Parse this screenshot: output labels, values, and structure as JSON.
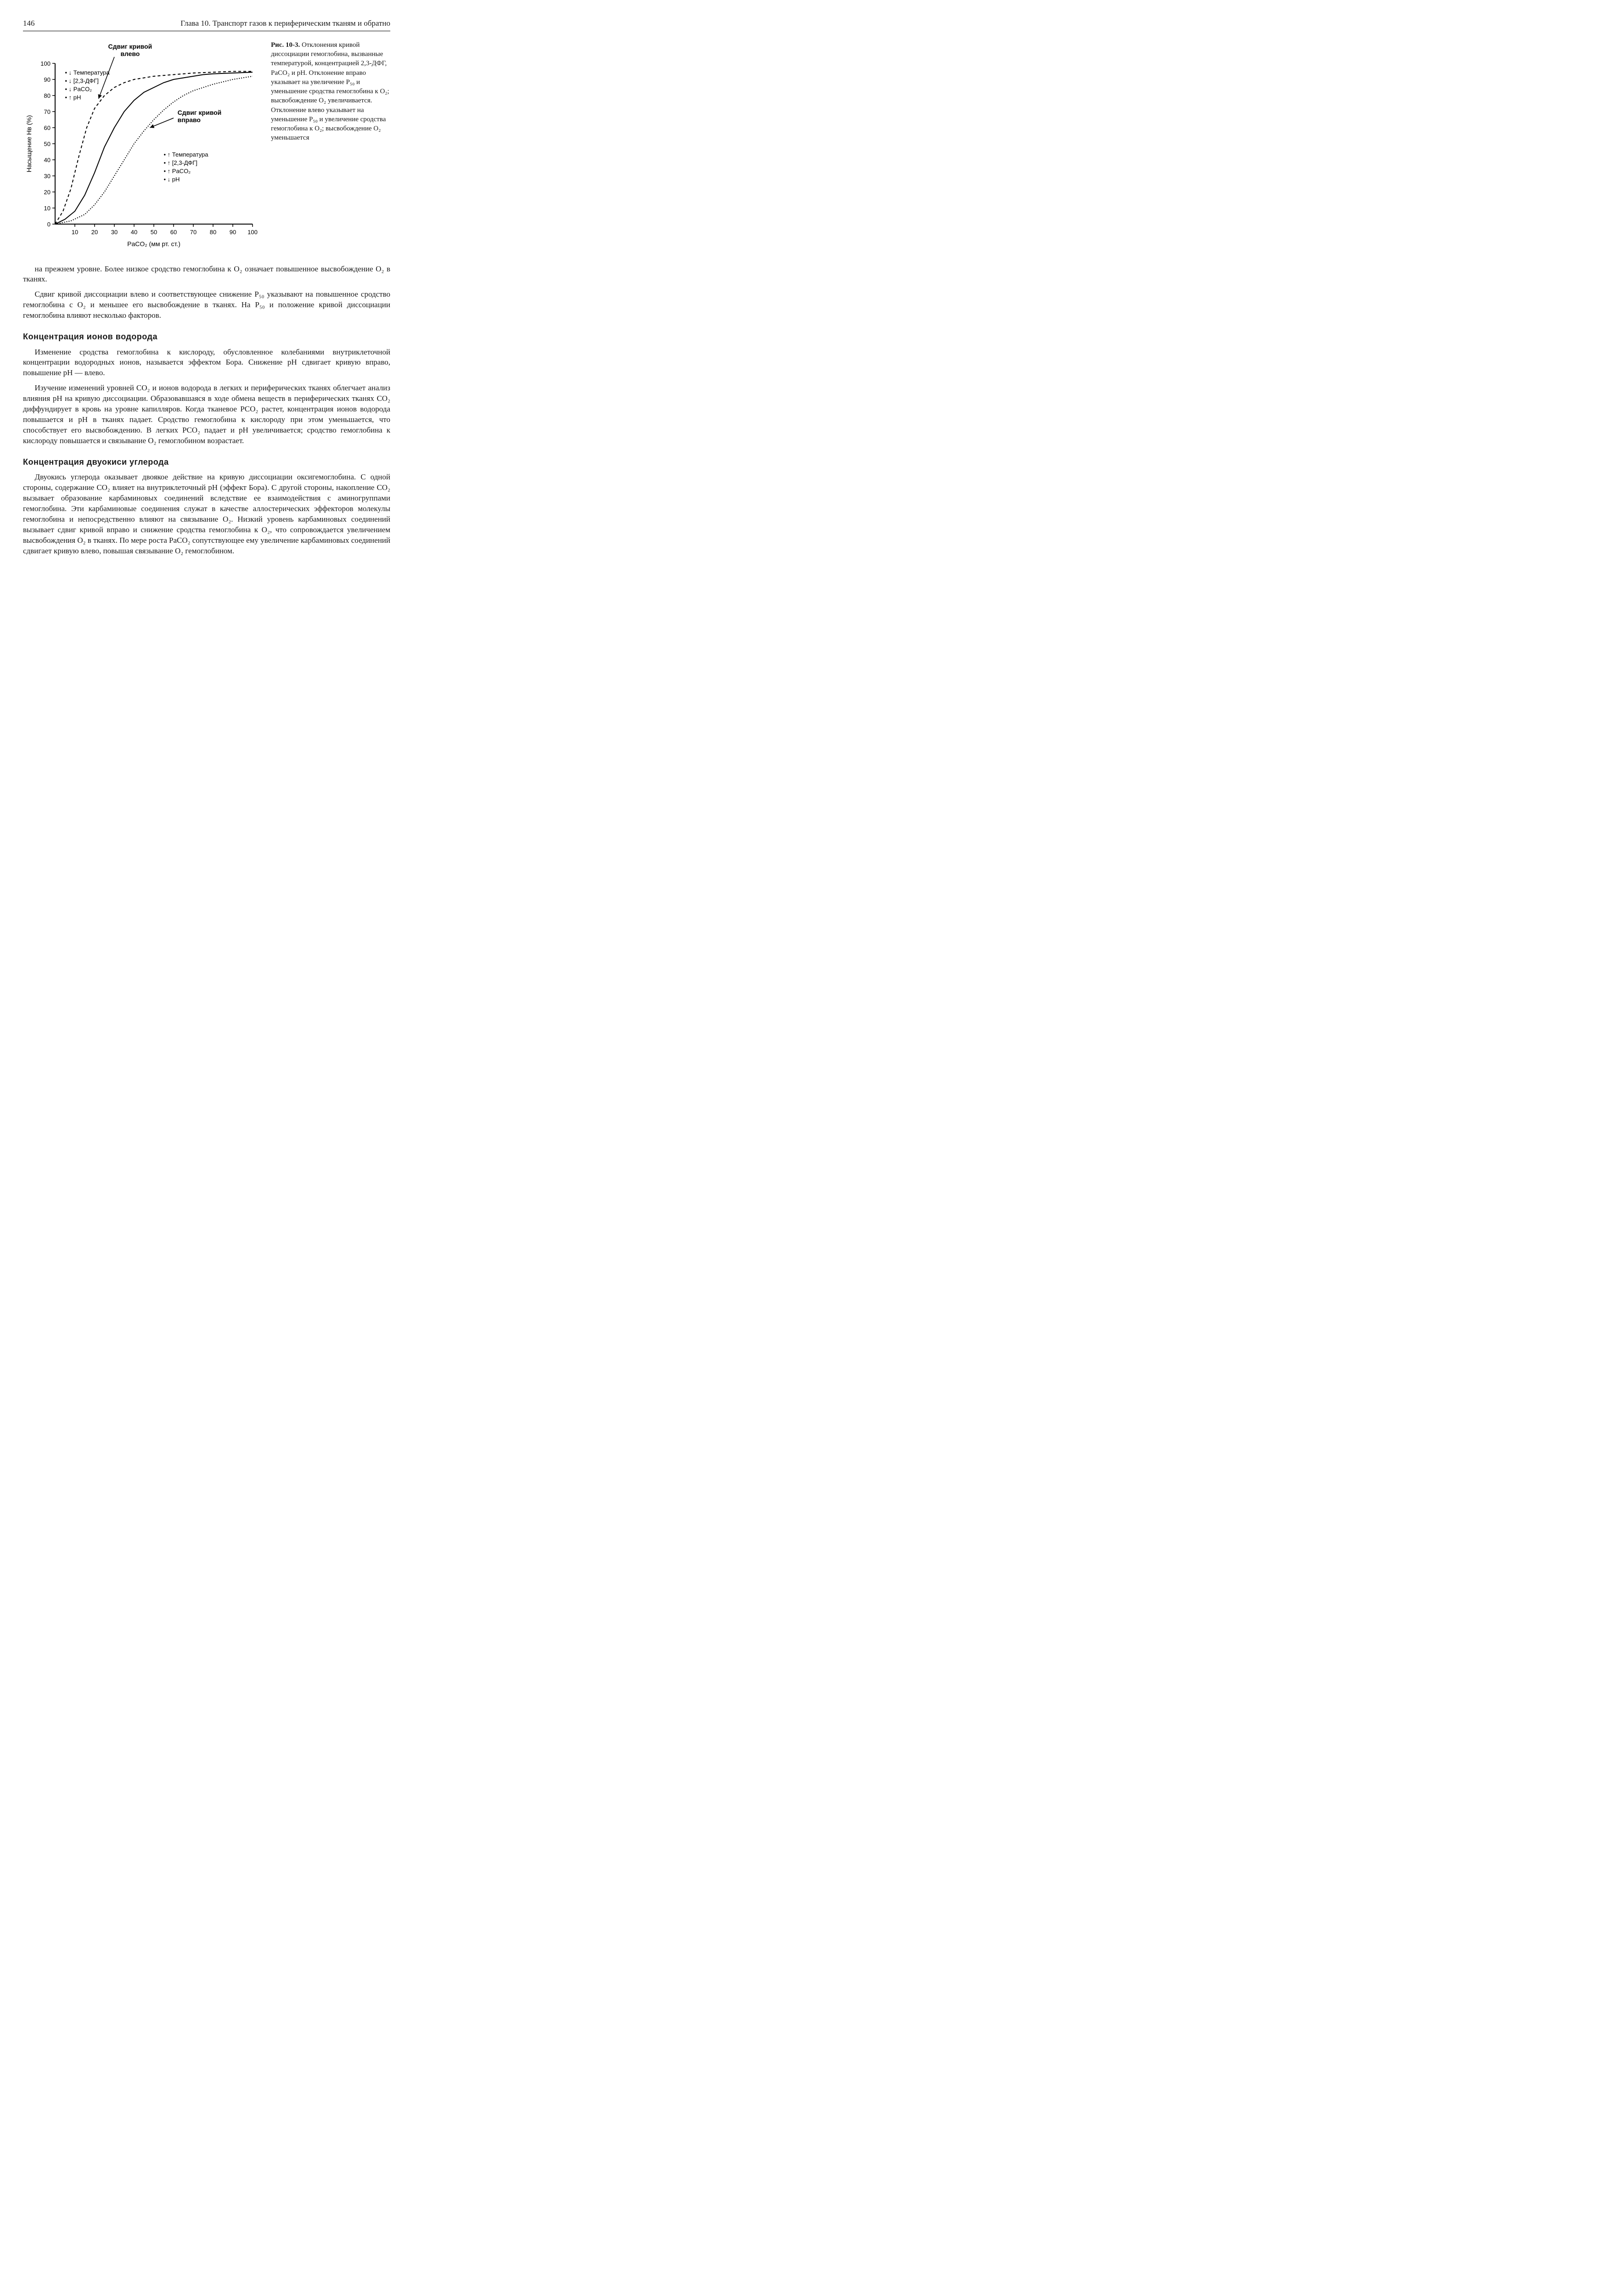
{
  "header": {
    "page_number": "146",
    "chapter_title": "Глава 10. Транспорт газов к периферическим тканям и обратно"
  },
  "figure": {
    "fignum": "Рис. 10-3.",
    "caption_text": "Отклонения кривой диссоциации гемоглобина, вызванные температурой, концентрацией 2,3-ДФГ, PaCO₂ и pH. Отклонение вправо указывает на увеличение P₅₀ и уменьшение сродства гемоглобина к O₂; высвобождение O₂ увеличивается. Отклонение влево указывает на уменьшение P₅₀ и увеличение сродства гемоглобина к O₂; высвобождение O₂ уменьшается",
    "chart": {
      "type": "line",
      "xlabel": "PaCO₂ (мм рт. ст.)",
      "ylabel": "Насыщение Hв (%)",
      "xlim": [
        0,
        100
      ],
      "ylim": [
        0,
        100
      ],
      "xticks": [
        10,
        20,
        30,
        40,
        50,
        60,
        70,
        80,
        90,
        100
      ],
      "yticks": [
        0,
        10,
        20,
        30,
        40,
        50,
        60,
        70,
        80,
        90,
        100
      ],
      "tick_fontsize": 13,
      "label_fontsize": 14,
      "line_color": "#000000",
      "background_color": "#ffffff",
      "curves": {
        "normal": {
          "dash": "none",
          "width": 2,
          "points": [
            [
              0,
              0
            ],
            [
              5,
              3
            ],
            [
              10,
              8
            ],
            [
              15,
              18
            ],
            [
              20,
              32
            ],
            [
              25,
              48
            ],
            [
              30,
              60
            ],
            [
              35,
              70
            ],
            [
              40,
              77
            ],
            [
              45,
              82
            ],
            [
              50,
              85
            ],
            [
              55,
              88
            ],
            [
              60,
              90
            ],
            [
              65,
              91
            ],
            [
              70,
              92
            ],
            [
              75,
              93
            ],
            [
              80,
              93.5
            ],
            [
              90,
              94
            ],
            [
              100,
              94.5
            ]
          ]
        },
        "left": {
          "dash": "6,5",
          "width": 2,
          "points": [
            [
              0,
              0
            ],
            [
              4,
              8
            ],
            [
              8,
              22
            ],
            [
              12,
              42
            ],
            [
              16,
              60
            ],
            [
              20,
              72
            ],
            [
              25,
              80
            ],
            [
              30,
              85
            ],
            [
              35,
              88
            ],
            [
              40,
              90
            ],
            [
              50,
              92
            ],
            [
              60,
              93
            ],
            [
              70,
              94
            ],
            [
              80,
              94.5
            ],
            [
              90,
              95
            ],
            [
              100,
              95
            ]
          ]
        },
        "right": {
          "dash": "2,3",
          "width": 2,
          "points": [
            [
              0,
              0
            ],
            [
              8,
              2
            ],
            [
              15,
              6
            ],
            [
              20,
              12
            ],
            [
              25,
              20
            ],
            [
              30,
              30
            ],
            [
              35,
              40
            ],
            [
              40,
              50
            ],
            [
              45,
              58
            ],
            [
              50,
              65
            ],
            [
              55,
              71
            ],
            [
              60,
              76
            ],
            [
              65,
              80
            ],
            [
              70,
              83
            ],
            [
              75,
              85
            ],
            [
              80,
              87
            ],
            [
              85,
              88.5
            ],
            [
              90,
              90
            ],
            [
              95,
              91
            ],
            [
              100,
              92
            ]
          ]
        }
      },
      "annotations": {
        "shift_left_title": "Сдвиг кривой\nвлево",
        "shift_right_title": "Сдвиг кривой\nвправо",
        "left_box_lines": [
          "↓ Температура",
          "↓ [2,3-ДФГ]",
          "↓ PaCO₂",
          "↑ pH"
        ],
        "right_box_lines": [
          "↑ Температура",
          "↑ [2,3-ДФГ]",
          "↑ PaCO₂",
          "↓ pH"
        ]
      }
    }
  },
  "paragraphs": {
    "p1": "на прежнем уровне. Более низкое сродство гемоглобина к O₂ означает повышенное высвобождение O₂ в тканях.",
    "p2": "Сдвиг кривой диссоциации влево и соответствующее снижение P₅₀ указывают на повышенное сродство гемоглобина с O₂ и меньшее его высвобождение в тканях. На P₅₀ и положение кривой диссоциации гемоглобина влияют несколько факторов."
  },
  "sections": {
    "s1_title": "Концентрация ионов водорода",
    "s1_p1": "Изменение сродства гемоглобина к кислороду, обусловленное колебаниями внутриклеточной концентрации водородных ионов, называется эффектом Бора. Снижение pH сдвигает кривую вправо, повышение pH — влево.",
    "s1_p2": "Изучение изменений уровней CO₂ и ионов водорода в легких и периферических тканях облегчает анализ влияния pH на кривую диссоциации. Образовавшаяся в ходе обмена веществ в периферических тканях CO₂ диффундирует в кровь на уровне капилляров. Когда тканевое PCO₂ растет, концентрация ионов водорода повышается и pH в тканях падает. Сродство гемоглобина к кислороду при этом уменьшается, что способствует его высвобождению. В легких PCO₂ падает и pH увеличивается; сродство гемоглобина к кислороду повышается и связывание O₂ гемоглобином возрастает.",
    "s2_title": "Концентрация двуокиси углерода",
    "s2_p1": "Двуокись углерода оказывает двоякое действие на кривую диссоциации оксигемоглобина. С одной стороны, содержание CO₂ влияет на внутриклеточный pH (эффект Бора). С другой стороны, накопление CO₂ вызывает образование карбаминовых соединений вследствие ее взаимодействия с аминогруппами гемоглобина. Эти карбаминовые соединения служат в качестве аллостерических эффекторов молекулы гемоглобина и непосредственно влияют на связывание O₂. Низкий уровень карбаминовых соединений вызывает сдвиг кривой вправо и снижение сродства гемоглобина к O₂, что сопровождается увеличением высвобождения O₂ в тканях. По мере роста PaCO₂ сопутствующее ему увеличение карбаминовых соединений сдвигает кривую влево, повышая связывание O₂ гемоглобином."
  }
}
